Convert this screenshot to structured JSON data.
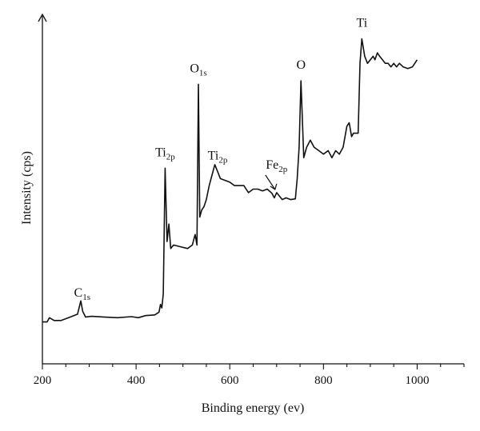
{
  "chart_data": {
    "type": "line",
    "title": "",
    "xlabel": "Binding energy (ev)",
    "ylabel": "Intensity (cps)",
    "xlim": [
      200,
      1100
    ],
    "ylim": [
      0,
      100
    ],
    "x_ticks": [
      "200",
      "400",
      "600",
      "800",
      "1000"
    ],
    "grid": false,
    "legend": "none",
    "line_color": "#111111",
    "series": [
      {
        "x": [
          200,
          210,
          215,
          225,
          240,
          260,
          275,
          282,
          286,
          292,
          305,
          330,
          360,
          390,
          405,
          420,
          440,
          449,
          452,
          455,
          458,
          462,
          466,
          470,
          474,
          480,
          495,
          510,
          520,
          526,
          530,
          533,
          536,
          540,
          545,
          550,
          556,
          562,
          568,
          574,
          580,
          590,
          600,
          610,
          620,
          630,
          640,
          650,
          660,
          670,
          680,
          690,
          695,
          700,
          706,
          712,
          720,
          730,
          740,
          744,
          748,
          752,
          758,
          764,
          772,
          780,
          790,
          800,
          810,
          818,
          826,
          834,
          842,
          850,
          855,
          860,
          864,
          868,
          874,
          878,
          882,
          888,
          894,
          900,
          906,
          910,
          915,
          920,
          926,
          932,
          938,
          944,
          950,
          956,
          962,
          970,
          980,
          990,
          995,
          1000
        ],
        "y": [
          12.0,
          12.0,
          13.2,
          12.4,
          12.4,
          13.4,
          14.2,
          18.0,
          15.0,
          13.4,
          13.6,
          13.4,
          13.2,
          13.5,
          13.2,
          13.8,
          14.0,
          14.8,
          17.0,
          16.0,
          20.0,
          56.0,
          35.0,
          40.0,
          33.0,
          34.0,
          33.5,
          33.0,
          34.0,
          37.0,
          34.0,
          80.0,
          42.0,
          44.0,
          45.0,
          47.0,
          51.0,
          54.0,
          57.0,
          55.0,
          53.0,
          52.5,
          52.0,
          51.0,
          51.0,
          51.0,
          49.0,
          50.0,
          50.0,
          49.5,
          50.0,
          48.8,
          47.5,
          49.0,
          48.0,
          47.0,
          47.5,
          47.0,
          47.2,
          53.0,
          62.0,
          81.0,
          59.0,
          62.0,
          64.0,
          62.0,
          61.0,
          60.0,
          61.0,
          59.0,
          61.0,
          60.0,
          62.0,
          68.0,
          69.0,
          65.0,
          66.0,
          66.0,
          66.0,
          86.0,
          93.0,
          88.0,
          86.0,
          87.0,
          88.0,
          87.0,
          89.0,
          88.0,
          87.0,
          86.0,
          86.0,
          85.0,
          86.0,
          85.0,
          86.0,
          85.0,
          84.5,
          85.0,
          86.0,
          87.0
        ]
      }
    ],
    "annotations": [
      {
        "id": "c1s",
        "main": "C",
        "sub": "1s",
        "x": 285,
        "y_offset": 3
      },
      {
        "id": "ti2p-a",
        "main": "Ti",
        "sub": "2p",
        "x": 462,
        "y_offset": 3
      },
      {
        "id": "o1s",
        "main": "O",
        "sub": "1s",
        "x": 533,
        "y_offset": 3
      },
      {
        "id": "ti2p-b",
        "main": "Ti",
        "sub": "2p",
        "x": 574,
        "y_offset": 3
      },
      {
        "id": "fe2p",
        "main": "Fe",
        "sub": "2p",
        "x": 700,
        "y_offset": 18,
        "arrow": true
      },
      {
        "id": "o",
        "main": "O",
        "sub": "",
        "x": 752,
        "y_offset": 3
      },
      {
        "id": "ti",
        "main": "Ti",
        "sub": "",
        "x": 882,
        "y_offset": 3
      }
    ]
  }
}
